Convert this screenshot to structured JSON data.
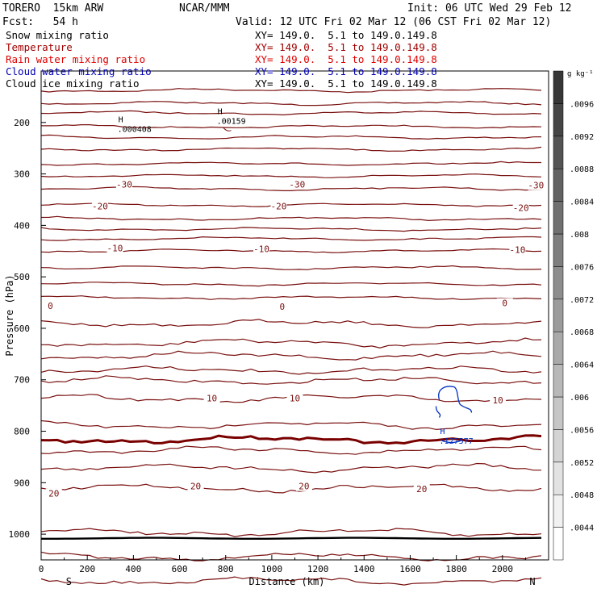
{
  "header": {
    "model": "TORERO  15km ARW",
    "center": "NCAR/MMM",
    "init": "Init: 06 UTC Wed 29 Feb 12",
    "fcst": "Fcst:   54 h",
    "valid": "Valid: 12 UTC Fri 02 Mar 12 (06 CST Fri 02 Mar 12)"
  },
  "legend": [
    {
      "name": "Snow mixing ratio",
      "xy": "XY= 149.0.  5.1 to 149.0.149.8",
      "color": "#000000"
    },
    {
      "name": "Temperature",
      "xy": "XY= 149.0.  5.1 to 149.0.149.8",
      "color": "#a00000"
    },
    {
      "name": "Rain water mixing ratio",
      "xy": "XY= 149.0.  5.1 to 149.0.149.8",
      "color": "#e00000"
    },
    {
      "name": "Cloud water mixing ratio",
      "xy": "XY= 149.0.  5.1 to 149.0.149.8",
      "color": "#0000b0"
    },
    {
      "name": "Cloud ice mixing ratio",
      "xy": "XY= 149.0.  5.1 to 149.0.149.8",
      "color": "#000000"
    }
  ],
  "colors": {
    "temperature": "#7a1010",
    "freezing": "#7a0000",
    "cloud_water": "#0030c0",
    "ground": "#000000"
  },
  "chart_data": {
    "type": "cross-section contour",
    "xlabel": "Distance (km)",
    "ylabel": "Pressure (hPa)",
    "xlim": [
      0,
      2200
    ],
    "ylim": [
      1050,
      100
    ],
    "xticks": [
      0,
      200,
      400,
      600,
      800,
      1000,
      1200,
      1400,
      1600,
      1800,
      2000
    ],
    "yticks": [
      200,
      300,
      400,
      500,
      600,
      700,
      800,
      900,
      1000
    ],
    "left_end_label": "S",
    "right_end_label": "N",
    "colorbar": {
      "units": "g kg⁻¹",
      "ticks": [
        ".0044",
        ".0048",
        ".0052",
        ".0056",
        ".006",
        ".0064",
        ".0068",
        ".0072",
        ".0076",
        ".008",
        ".0084",
        ".0088",
        ".0092",
        ".0096"
      ]
    },
    "temperature_isotherm_labels": [
      {
        "text": "-30",
        "x": 360,
        "p": 323
      },
      {
        "text": "-30",
        "x": 1110,
        "p": 323
      },
      {
        "text": "-30",
        "x": 2145,
        "p": 325
      },
      {
        "text": "-20",
        "x": 255,
        "p": 366
      },
      {
        "text": "-20",
        "x": 1030,
        "p": 366
      },
      {
        "text": "-20",
        "x": 2080,
        "p": 369
      },
      {
        "text": "-10",
        "x": 320,
        "p": 447
      },
      {
        "text": "-10",
        "x": 955,
        "p": 449
      },
      {
        "text": "-10",
        "x": 2065,
        "p": 450
      },
      {
        "text": "0",
        "x": 40,
        "p": 559
      },
      {
        "text": "0",
        "x": 1045,
        "p": 561
      },
      {
        "text": "0",
        "x": 2010,
        "p": 554
      },
      {
        "text": "10",
        "x": 740,
        "p": 739
      },
      {
        "text": "10",
        "x": 1100,
        "p": 739
      },
      {
        "text": "10",
        "x": 1980,
        "p": 743
      },
      {
        "text": "20",
        "x": 55,
        "p": 924
      },
      {
        "text": "20",
        "x": 670,
        "p": 910
      },
      {
        "text": "20",
        "x": 1140,
        "p": 910
      },
      {
        "text": "20",
        "x": 1650,
        "p": 915
      }
    ],
    "maxima_labels": [
      {
        "mark": "H",
        "value": ".000408",
        "x": 380,
        "p": 218,
        "color": "#000000"
      },
      {
        "mark": "H",
        "value": ".00159",
        "x": 810,
        "p": 203,
        "color": "#000000"
      },
      {
        "mark": "H",
        "value": ".127577",
        "x": 1775,
        "p": 824,
        "color": "#0030c0"
      }
    ]
  }
}
